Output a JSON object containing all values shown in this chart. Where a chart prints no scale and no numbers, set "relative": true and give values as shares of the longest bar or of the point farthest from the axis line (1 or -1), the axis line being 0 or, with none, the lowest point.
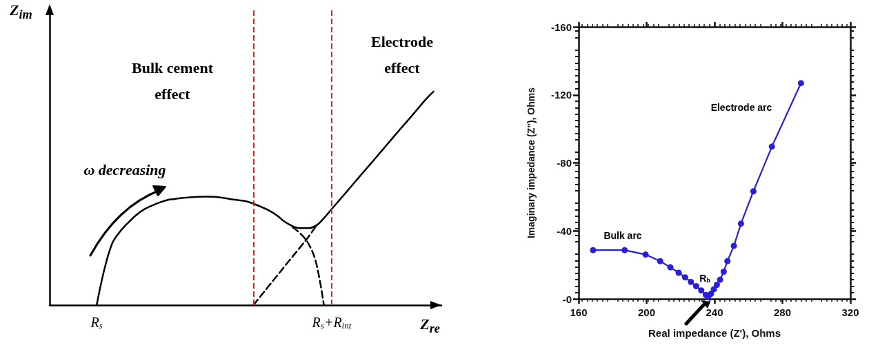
{
  "chart_data": [
    {
      "type": "line",
      "relative": true,
      "xlabel": "Z$_{re}$",
      "ylabel": "Z$_{im}$",
      "annotations": [
        "ω decreasing",
        "Bulk cement effect",
        "Electrode effect"
      ],
      "categories": [
        null,
        null,
        null,
        null,
        null,
        null,
        "R$_{s}$",
        null,
        null,
        null,
        null,
        null,
        null,
        null,
        null,
        null,
        null,
        null,
        null,
        null,
        null,
        null,
        null,
        null,
        null,
        null,
        null,
        null,
        null,
        null,
        null,
        null,
        null,
        null,
        null,
        null,
        "R$_{s}$+R$_{int}$",
        null,
        null,
        null,
        null,
        null,
        null,
        null,
        null,
        null,
        null,
        null,
        null,
        null,
        null
      ],
      "marker": "none",
      "series": [
        {
          "color": "#000000",
          "line_style": "solid",
          "values": [
            null,
            null,
            null,
            null,
            null,
            null,
            0,
            0.17,
            0.29,
            0.345,
            0.385,
            0.42,
            0.447,
            0.465,
            0.48,
            0.492,
            0.497,
            0.502,
            0.505,
            0.507,
            0.508,
            0.507,
            0.503,
            0.497,
            0.492,
            0.487,
            0.475,
            0.46,
            0.443,
            0.42,
            0.39,
            0.37,
            0.36,
            0.36,
            0.372,
            0.407,
            0.45,
            0.492,
            0.535,
            0.578,
            0.621,
            0.663,
            0.706,
            0.749,
            0.792,
            0.835,
            0.877,
            0.92,
            0.963,
            1.0,
            null
          ]
        },
        {
          "color": "#000000",
          "line_style": "dashed",
          "values": [
            null,
            null,
            null,
            null,
            null,
            null,
            null,
            null,
            null,
            null,
            null,
            null,
            null,
            null,
            null,
            null,
            null,
            null,
            null,
            null,
            null,
            null,
            null,
            null,
            null,
            null,
            null,
            null,
            null,
            null,
            null,
            0.365,
            0.335,
            0.29,
            0.2,
            0,
            null,
            null,
            null,
            null,
            null,
            null,
            null,
            null,
            null,
            null,
            null,
            null,
            null,
            null,
            null
          ]
        },
        {
          "color": "#000000",
          "line_style": "dashed",
          "values": [
            null,
            null,
            null,
            null,
            null,
            null,
            null,
            null,
            null,
            null,
            null,
            null,
            null,
            null,
            null,
            null,
            null,
            null,
            null,
            null,
            null,
            null,
            null,
            null,
            null,
            null,
            0,
            0.045,
            0.091,
            0.136,
            0.182,
            0.227,
            0.272,
            0.318,
            0.37,
            null,
            null,
            null,
            null,
            null,
            null,
            null,
            null,
            null,
            null,
            null,
            null,
            null,
            null,
            null,
            null
          ]
        }
      ]
    },
    {
      "type": "line",
      "xlabel": "Real impedance (Z'), Ohms",
      "ylabel": "Imaginary impedance (Z\"), Ohms",
      "xlim": [
        160,
        320
      ],
      "xticks": [
        160,
        200,
        240,
        280,
        320
      ],
      "ylim": [
        0,
        -160
      ],
      "yticks": [
        {
          "value": 0,
          "label": "-0"
        },
        -40,
        -80,
        -120,
        -160
      ],
      "marker": "circle",
      "grid": false,
      "annotations": [
        "Bulk arc",
        "Electrode arc",
        "R$_{b}$"
      ],
      "series": [
        {
          "color": "#2a1fd6",
          "x": [
            168.5,
            187.1,
            199.4,
            208.0,
            214.0,
            218.9,
            222.7,
            226.1,
            229.2,
            232.2,
            234.9,
            236.3,
            237.9,
            239.6,
            241.4,
            243.3,
            245.4,
            247.6,
            251.4,
            255.6,
            262.9,
            273.8,
            290.9
          ],
          "values": [
            -28.7,
            -28.7,
            -26.1,
            -22.2,
            -18.6,
            -15.4,
            -12.7,
            -10,
            -7.5,
            -5,
            -2.3,
            -1.3,
            -3,
            -5.7,
            -8.3,
            -11.3,
            -16,
            -22.2,
            -31.2,
            -44.3,
            -63.3,
            -89.6,
            -126.9
          ]
        }
      ]
    }
  ]
}
